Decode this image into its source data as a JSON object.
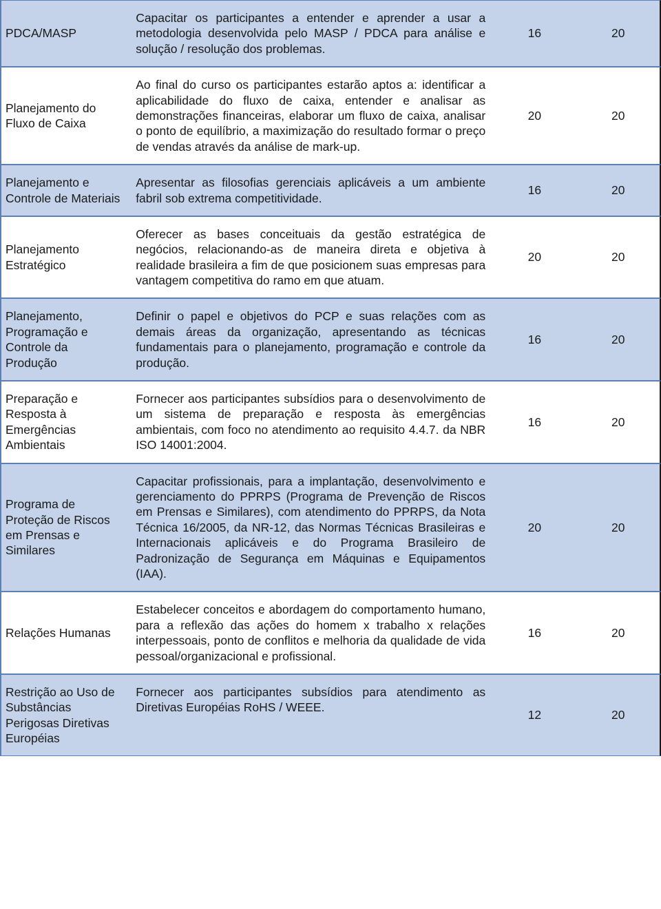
{
  "colors": {
    "shaded_bg": "#c4d3e9",
    "plain_bg": "#ffffff",
    "border": "#5a80b4",
    "text": "#1a1a1a"
  },
  "rows": [
    {
      "shaded": true,
      "title": "PDCA/MASP",
      "desc": "Capacitar os participantes a entender e aprender a usar a metodologia desenvolvida pelo MASP / PDCA para análise e solução / resolução dos\nproblemas.",
      "col3": "16",
      "col4": "20"
    },
    {
      "shaded": false,
      "title": "Planejamento do Fluxo de Caixa",
      "desc": "Ao final do curso os participantes estarão aptos a: identificar a aplicabilidade do fluxo de caixa, entender e analisar as demonstrações financeiras, elaborar um fluxo de caixa, analisar o ponto de equilíbrio, a maximização do resultado formar o preço de vendas através da análise de mark-up.",
      "col3": "20",
      "col4": "20"
    },
    {
      "shaded": true,
      "title": "Planejamento e Controle de Materiais",
      "desc": "Apresentar as filosofias gerenciais aplicáveis a um ambiente fabril sob extrema competitividade.",
      "col3": "16",
      "col4": "20"
    },
    {
      "shaded": false,
      "title": "Planejamento Estratégico",
      "desc": "Oferecer as bases conceituais da gestão estratégica de negócios, relacionando-as de maneira direta e objetiva à realidade brasileira a fim de que posicionem suas empresas para vantagem competitiva do ramo em que atuam.",
      "col3": "20",
      "col4": "20"
    },
    {
      "shaded": true,
      "title": "Planejamento, Programação e Controle da Produção",
      "desc": "Definir o papel e objetivos do PCP e suas relações com as demais áreas da organização, apresentando as técnicas fundamentais para o planejamento, programação e controle da produção.",
      "col3": "16",
      "col4": "20"
    },
    {
      "shaded": false,
      "title": "Preparação e Resposta à Emergências Ambientais",
      "desc": "Fornecer aos participantes subsídios para o desenvolvimento de um sistema de preparação e resposta às emergências ambientais, com foco no atendimento ao requisito 4.4.7. da NBR ISO 14001:2004.",
      "col3": "16",
      "col4": "20"
    },
    {
      "shaded": true,
      "title": "Programa de Proteção de Riscos em Prensas e Similares",
      "desc": "Capacitar profissionais, para a implantação, desenvolvimento e gerenciamento do PPRPS (Programa de Prevenção de Riscos em Prensas e Similares), com atendimento do PPRPS, da Nota Técnica 16/2005, da NR-12, das Normas Técnicas Brasileiras e Internacionais aplicáveis e do Programa Brasileiro de Padronização de Segurança em Máquinas e Equipamentos (IAA).",
      "col3": "20",
      "col4": "20"
    },
    {
      "shaded": false,
      "title": "Relações Humanas",
      "desc": "Estabelecer conceitos e abordagem do comportamento humano, para a reflexão das ações do homem x trabalho x relações interpessoais, ponto de conflitos e melhoria da qualidade de vida pessoal/organizacional e profissional.",
      "col3": "16",
      "col4": "20"
    },
    {
      "shaded": true,
      "title": "Restrição ao Uso de Substâncias Perigosas Diretivas Européias",
      "desc": "Fornecer aos participantes subsídios para atendimento as Diretivas Européias RoHS / WEEE.",
      "col3": "12",
      "col4": "20"
    }
  ]
}
